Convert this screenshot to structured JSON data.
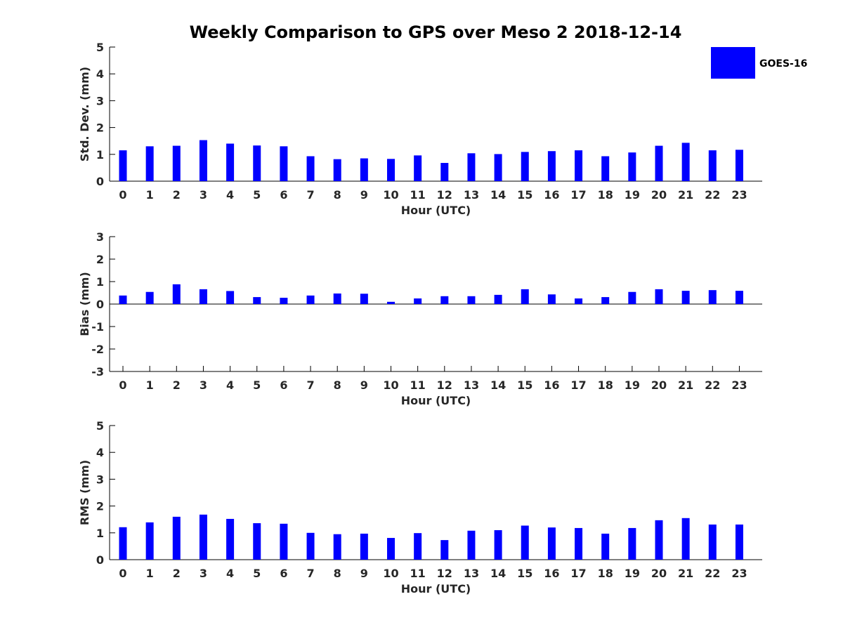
{
  "title": "Weekly Comparison to GPS over Meso 2 2018-12-14",
  "legend": {
    "label": "GOES-16",
    "color": "#0000ff"
  },
  "chart_data": [
    {
      "type": "bar",
      "series_name": "GOES-16",
      "xlabel": "Hour (UTC)",
      "ylabel": "Std. Dev. (mm)",
      "ylim": [
        0,
        5
      ],
      "yticks": [
        0,
        1,
        2,
        3,
        4,
        5
      ],
      "categories": [
        0,
        1,
        2,
        3,
        4,
        5,
        6,
        7,
        8,
        9,
        10,
        11,
        12,
        13,
        14,
        15,
        16,
        17,
        18,
        19,
        20,
        21,
        22,
        23
      ],
      "values": [
        1.15,
        1.3,
        1.32,
        1.53,
        1.4,
        1.33,
        1.3,
        0.93,
        0.82,
        0.85,
        0.83,
        0.96,
        0.68,
        1.04,
        1.01,
        1.09,
        1.12,
        1.15,
        0.93,
        1.07,
        1.32,
        1.43,
        1.15,
        1.17
      ]
    },
    {
      "type": "bar",
      "series_name": "GOES-16",
      "xlabel": "Hour (UTC)",
      "ylabel": "Bias (mm)",
      "ylim": [
        -3,
        3
      ],
      "yticks": [
        -3,
        -2,
        -1,
        0,
        1,
        2,
        3
      ],
      "categories": [
        0,
        1,
        2,
        3,
        4,
        5,
        6,
        7,
        8,
        9,
        10,
        11,
        12,
        13,
        14,
        15,
        16,
        17,
        18,
        19,
        20,
        21,
        22,
        23
      ],
      "values": [
        0.38,
        0.54,
        0.88,
        0.66,
        0.58,
        0.31,
        0.28,
        0.38,
        0.47,
        0.46,
        0.1,
        0.25,
        0.35,
        0.35,
        0.41,
        0.66,
        0.43,
        0.25,
        0.31,
        0.54,
        0.66,
        0.59,
        0.62,
        0.59
      ]
    },
    {
      "type": "bar",
      "series_name": "GOES-16",
      "xlabel": "Hour (UTC)",
      "ylabel": "RMS (mm)",
      "ylim": [
        0,
        5
      ],
      "yticks": [
        0,
        1,
        2,
        3,
        4,
        5
      ],
      "categories": [
        0,
        1,
        2,
        3,
        4,
        5,
        6,
        7,
        8,
        9,
        10,
        11,
        12,
        13,
        14,
        15,
        16,
        17,
        18,
        19,
        20,
        21,
        22,
        23
      ],
      "values": [
        1.21,
        1.39,
        1.6,
        1.68,
        1.52,
        1.36,
        1.34,
        1.0,
        0.95,
        0.97,
        0.81,
        0.99,
        0.73,
        1.08,
        1.1,
        1.27,
        1.2,
        1.18,
        0.97,
        1.18,
        1.47,
        1.55,
        1.31,
        1.31
      ]
    }
  ]
}
